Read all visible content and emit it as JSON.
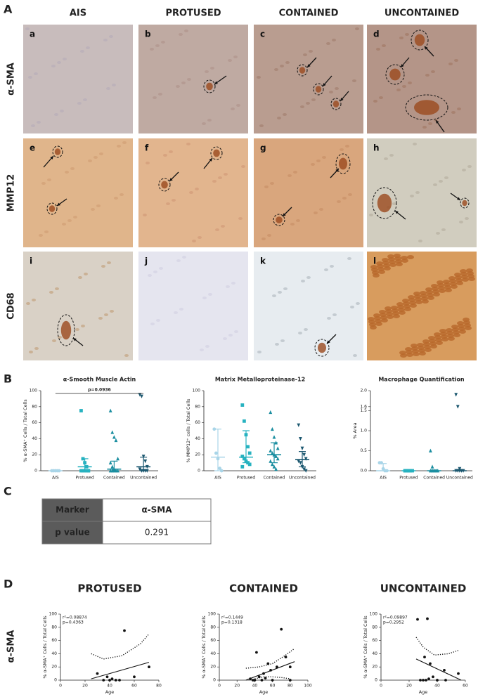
{
  "panel_labels": [
    "A",
    "B",
    "C",
    "D"
  ],
  "panel_a": {
    "columns": [
      "AIS",
      "PROTUSED",
      "CONTAINED",
      "UNCONTAINED"
    ],
    "rows": [
      "α-SMA",
      "MMP12",
      "CD68"
    ],
    "images": [
      "a",
      "b",
      "c",
      "d",
      "e",
      "f",
      "g",
      "h",
      "i",
      "j",
      "k",
      "l"
    ]
  },
  "panel_c": {
    "header": [
      "Marker",
      "α-SMA"
    ],
    "rows": [
      [
        "p value",
        "0.291"
      ]
    ]
  },
  "panel_d": {
    "row_label": "α-SMA"
  },
  "chart_data": [
    {
      "type": "dot",
      "title": "α-Smooth Muscle Actin",
      "ylabel": "% α-SMA⁺ Cells / Total Cells",
      "annotation": "p=0.0936",
      "categories": [
        "AIS",
        "Protused",
        "Contained",
        "Uncontained"
      ],
      "colors": [
        "#a9d5e8",
        "#27b2c0",
        "#1a8ea0",
        "#1c5870"
      ],
      "markers": [
        "circle",
        "square",
        "triangle",
        "triangle-down"
      ],
      "points": [
        [
          0,
          0,
          0,
          0,
          0
        ],
        [
          75,
          15,
          10,
          5,
          0,
          0,
          0,
          0,
          0,
          0
        ],
        [
          75,
          48,
          42,
          38,
          15,
          10,
          5,
          2,
          0,
          0,
          0,
          0,
          0
        ],
        [
          95,
          93,
          18,
          12,
          5,
          2,
          0,
          0,
          0,
          0
        ]
      ],
      "medians": [
        0,
        5,
        2,
        5
      ],
      "error_low": [
        0,
        0,
        0,
        0
      ],
      "error_high": [
        0,
        15,
        12,
        17
      ],
      "ylim": [
        0,
        100
      ],
      "yticks": [
        0,
        20,
        40,
        60,
        80,
        100
      ]
    },
    {
      "type": "dot",
      "title": "Matrix Metalloproteinase-12",
      "ylabel": "% MMP12⁺ cells / Total Cells",
      "categories": [
        "AIS",
        "Protused",
        "Contained",
        "Uncontained"
      ],
      "colors": [
        "#a9d5e8",
        "#27b2c0",
        "#1a8ea0",
        "#1c5870"
      ],
      "markers": [
        "circle",
        "square",
        "triangle",
        "triangle-down"
      ],
      "points": [
        [
          52,
          22,
          15,
          3,
          0
        ],
        [
          82,
          62,
          45,
          30,
          22,
          18,
          15,
          12,
          10,
          8,
          5
        ],
        [
          73,
          52,
          42,
          35,
          28,
          25,
          22,
          20,
          18,
          15,
          12,
          8,
          5,
          2
        ],
        [
          57,
          40,
          28,
          20,
          15,
          12,
          10,
          5,
          2,
          0
        ]
      ],
      "medians": [
        17,
        17,
        20,
        14
      ],
      "error_low": [
        0,
        10,
        10,
        5
      ],
      "error_high": [
        52,
        50,
        35,
        24
      ],
      "ylim": [
        0,
        100
      ],
      "yticks": [
        0,
        20,
        40,
        60,
        80,
        100
      ]
    },
    {
      "type": "dot",
      "title": "Macrophage Quantification",
      "ylabel": "% Area",
      "categories": [
        "AIS",
        "Protused",
        "Contained",
        "Uncontained"
      ],
      "colors": [
        "#a9d5e8",
        "#27b2c0",
        "#1a8ea0",
        "#1c5870"
      ],
      "markers": [
        "circle",
        "square",
        "triangle",
        "triangle-down"
      ],
      "points": [
        [
          0.2,
          0.2,
          0.05,
          0,
          0
        ],
        [
          0,
          0,
          0,
          0,
          0,
          0,
          0,
          0
        ],
        [
          0.5,
          0.1,
          0,
          0,
          0,
          0,
          0
        ],
        [
          1.9,
          1.6,
          0.05,
          0,
          0,
          0,
          0,
          0
        ]
      ],
      "medians": [
        0,
        0,
        0,
        0
      ],
      "error_low": [
        0,
        0,
        0,
        0
      ],
      "error_high": [
        0.18,
        0,
        0.02,
        0.03
      ],
      "ylim": [
        0,
        2.0
      ],
      "yticks": [
        {
          "value": 0,
          "label": "0.0"
        },
        {
          "value": 0.5,
          "label": "0.5"
        },
        {
          "value": 1.0,
          "label": "1.0"
        },
        {
          "value": 1.5,
          "label": "1.5"
        },
        {
          "value": 1.6,
          "label": "1.6"
        },
        {
          "value": 2.0,
          "label": "2.0"
        }
      ]
    },
    {
      "type": "scatter",
      "title": "PROTUSED",
      "xlabel": "Age",
      "ylabel": "% α-SMA⁺ Cells / Total Cells",
      "annotation": [
        "r²=0.08874",
        "p=0.4363"
      ],
      "x": [
        52,
        30,
        38,
        42,
        45,
        48,
        35,
        60,
        72,
        40
      ],
      "y": [
        75,
        10,
        5,
        2,
        0,
        0,
        0,
        5,
        20,
        0
      ],
      "fit": {
        "x": [
          25,
          72
        ],
        "y": [
          2,
          27
        ]
      },
      "ci_upper": {
        "x": [
          25,
          35,
          50,
          65,
          72
        ],
        "y": [
          40,
          32,
          37,
          55,
          70
        ]
      },
      "xlim": [
        0,
        80
      ],
      "xticks": [
        0,
        20,
        40,
        60,
        80
      ],
      "ylim": [
        0,
        100
      ],
      "yticks": [
        0,
        20,
        40,
        60,
        80,
        100
      ]
    },
    {
      "type": "scatter",
      "title": "CONTAINED",
      "xlabel": "Age",
      "ylabel": "% α-SMA⁺ Cells / Total Cells",
      "annotation": [
        "r²=0.1449",
        "p=0.1318"
      ],
      "x": [
        70,
        42,
        55,
        65,
        75,
        80,
        35,
        40,
        45,
        50,
        60,
        48,
        38,
        52,
        58,
        80
      ],
      "y": [
        77,
        42,
        25,
        20,
        35,
        20,
        2,
        0,
        5,
        10,
        0,
        0,
        0,
        3,
        15,
        0
      ],
      "fit": {
        "x": [
          30,
          85
        ],
        "y": [
          0,
          28
        ]
      },
      "ci_upper": {
        "x": [
          30,
          45,
          60,
          75,
          85
        ],
        "y": [
          18,
          20,
          25,
          38,
          48
        ]
      },
      "ci_lower": {
        "x": [
          40,
          50,
          60,
          70,
          80
        ],
        "y": [
          2,
          5,
          5,
          4,
          2
        ]
      },
      "xlim": [
        0,
        100
      ],
      "xticks": [
        0,
        20,
        40,
        60,
        80,
        100
      ],
      "ylim": [
        0,
        100
      ],
      "yticks": [
        0,
        20,
        40,
        60,
        80,
        100
      ]
    },
    {
      "type": "scatter",
      "title": "UNCONTAINED",
      "xlabel": "Age",
      "ylabel": "% α-SMA⁺ Cells / Total Cells",
      "annotation": [
        "r²=0.09897",
        "p=0.2952"
      ],
      "x": [
        26,
        33,
        31,
        35,
        45,
        55,
        28,
        30,
        32,
        34,
        37,
        40,
        46
      ],
      "y": [
        92,
        93,
        35,
        25,
        15,
        10,
        0,
        0,
        0,
        2,
        5,
        0,
        0
      ],
      "fit": {
        "x": [
          25,
          57
        ],
        "y": [
          32,
          0
        ]
      },
      "ci_upper": {
        "x": [
          25,
          30,
          38,
          48,
          55
        ],
        "y": [
          65,
          50,
          38,
          40,
          45
        ]
      },
      "xlim": [
        0,
        60
      ],
      "xticks": [
        0,
        20,
        40,
        60
      ],
      "ylim": [
        0,
        100
      ],
      "yticks": [
        0,
        20,
        40,
        60,
        80,
        100
      ]
    }
  ]
}
